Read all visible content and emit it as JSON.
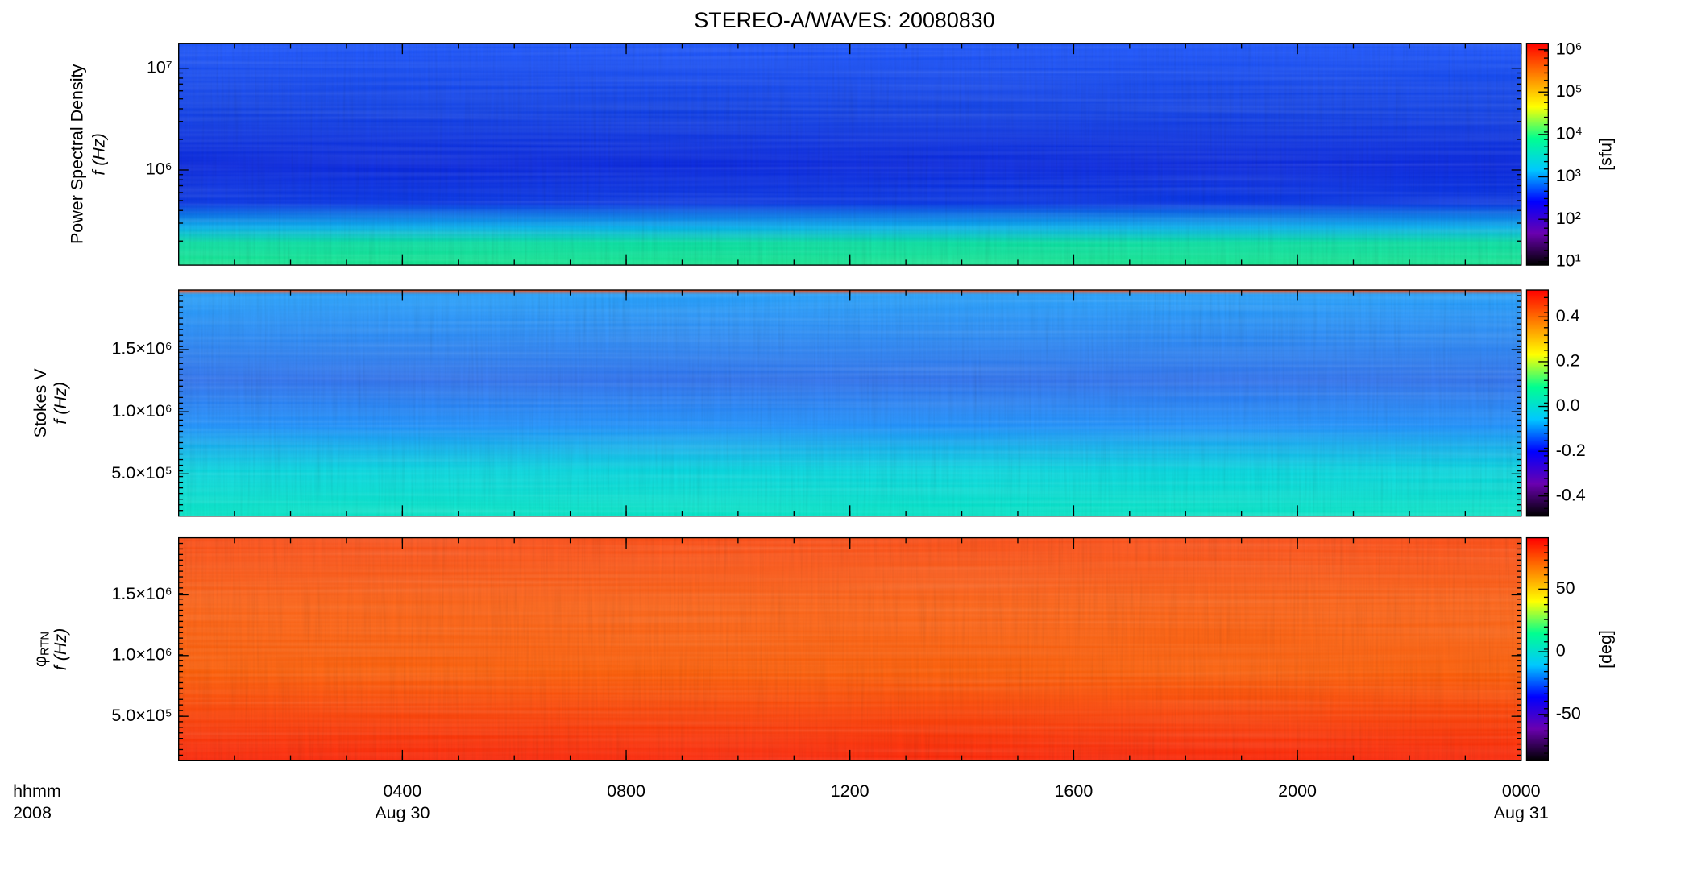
{
  "figure": {
    "title": "STEREO-A/WAVES: 20080830",
    "colormap": [
      "#000000",
      "#6a00b0",
      "#0000ff",
      "#00c8ff",
      "#00ff90",
      "#ffff00",
      "#ff8000",
      "#ff0000"
    ]
  },
  "x_axis": {
    "xlim": [
      0,
      24
    ],
    "xticks": [
      {
        "value": 4,
        "label": "0400"
      },
      {
        "value": 8,
        "label": "0800"
      },
      {
        "value": 12,
        "label": "1200"
      },
      {
        "value": 16,
        "label": "1600"
      },
      {
        "value": 20,
        "label": "2000"
      },
      {
        "value": 24,
        "label": "0000"
      }
    ],
    "date_labels": [
      {
        "value": 4,
        "label": "Aug 30"
      },
      {
        "value": 24,
        "label": "Aug 31"
      }
    ],
    "label": "hhmm",
    "year": "2008"
  },
  "chart_data": [
    {
      "type": "spectrogram",
      "ylabel": "Power Spectral Density",
      "ylabel2": "f (Hz)",
      "log_y": true,
      "ylim": [
        116000,
        17600000
      ],
      "yticks": [
        {
          "value": 10000000,
          "label": "10⁷"
        },
        {
          "value": 1000000,
          "label": "10⁶"
        }
      ],
      "colorbar": {
        "log": true,
        "lim": [
          8.3,
          1410000
        ],
        "label": "[sfu]",
        "ticks": [
          {
            "value": 1000000,
            "label": "10⁶"
          },
          {
            "value": 100000,
            "label": "10⁵"
          },
          {
            "value": 10000,
            "label": "10⁴"
          },
          {
            "value": 1000,
            "label": "10³"
          },
          {
            "value": 100,
            "label": "10²"
          },
          {
            "value": 10,
            "label": "10¹"
          }
        ]
      }
    },
    {
      "type": "spectrogram",
      "ylabel": "Stokes V",
      "ylabel2": "f (Hz)",
      "log_y": false,
      "ylim": [
        160000,
        1980000
      ],
      "yticks": [
        {
          "value": 1500000,
          "label": "1.5×10⁶"
        },
        {
          "value": 1000000,
          "label": "1.0×10⁶"
        },
        {
          "value": 500000,
          "label": "5.0×10⁵"
        }
      ],
      "colorbar": {
        "log": false,
        "lim": [
          -0.49,
          0.52
        ],
        "ticks": [
          0.4,
          0.2,
          {
            "value": 0,
            "label": "0.0"
          },
          -0.2,
          -0.4
        ]
      }
    },
    {
      "type": "spectrogram",
      "ylabel": "φ",
      "ylabel_subscript": "RTN",
      "ylabel2": "f (Hz)",
      "log_y": false,
      "ylim": [
        134000,
        1970000
      ],
      "yticks": [
        {
          "value": 1500000,
          "label": "1.5×10⁶"
        },
        {
          "value": 1000000,
          "label": "1.0×10⁶"
        },
        {
          "value": 500000,
          "label": "5.0×10⁵"
        }
      ],
      "colorbar": {
        "log": false,
        "lim": [
          -87,
          91
        ],
        "label": "[deg]",
        "ticks": [
          50,
          0,
          -50
        ]
      }
    }
  ]
}
